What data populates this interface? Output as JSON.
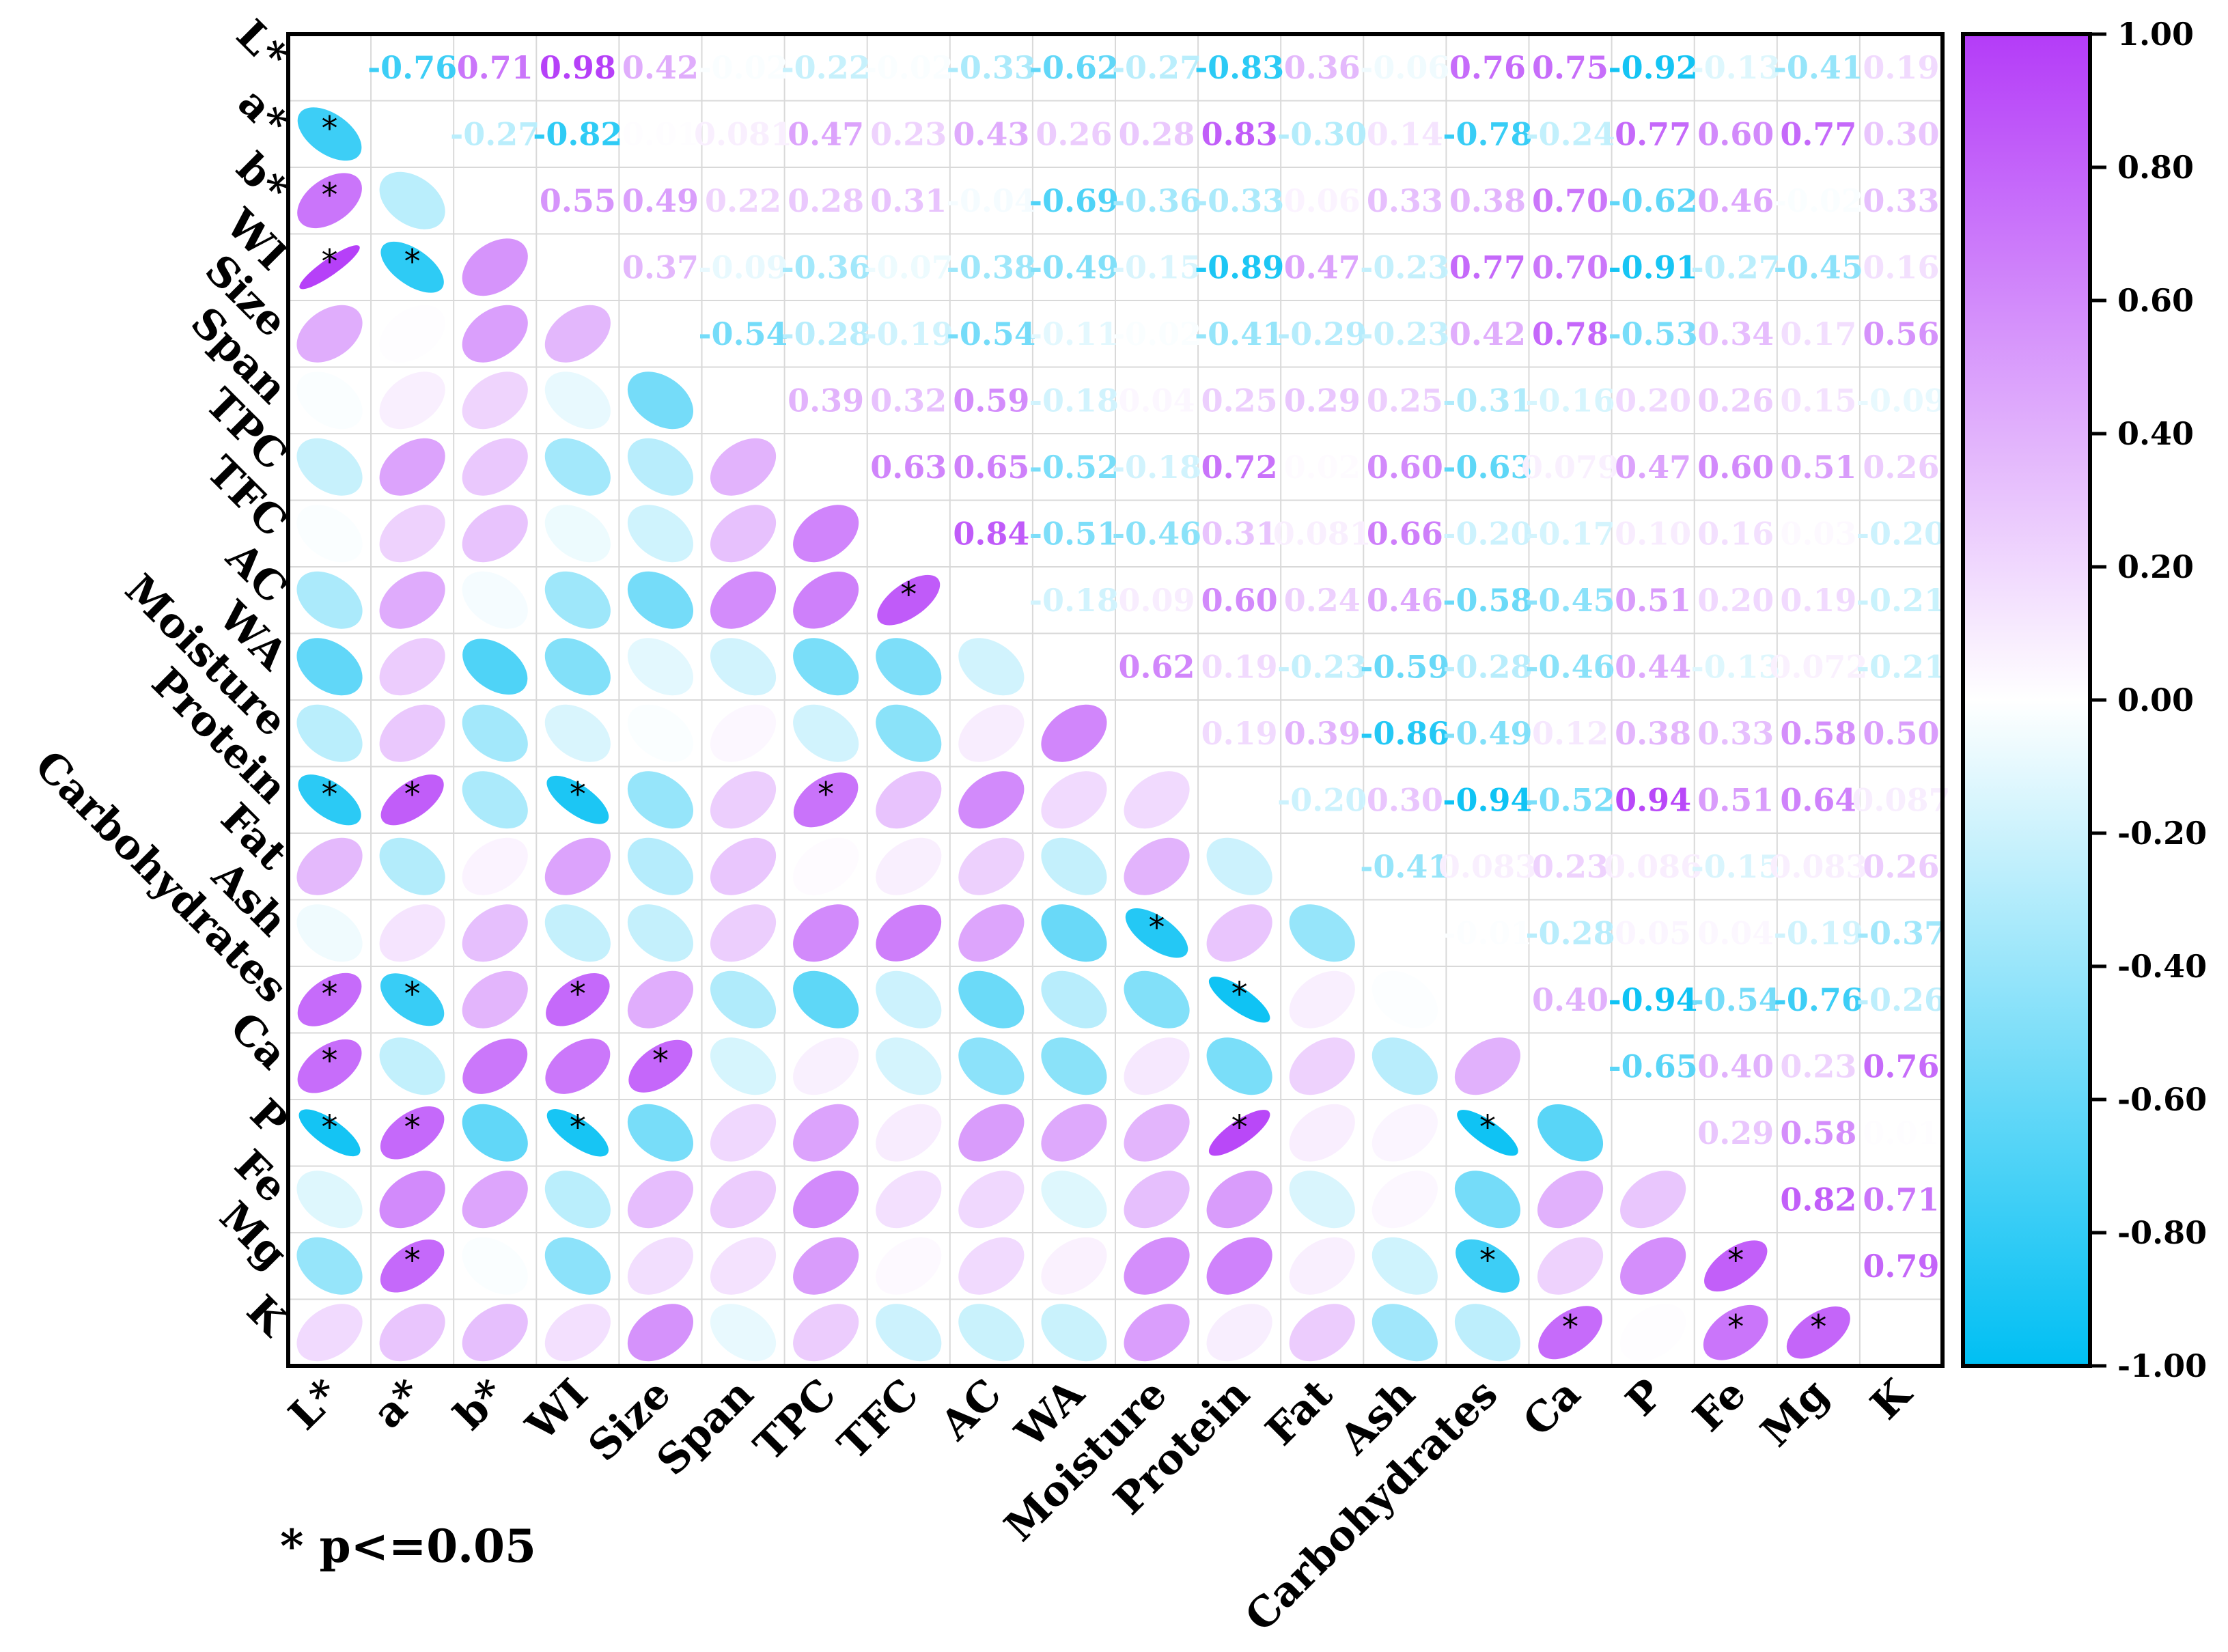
{
  "chart_data": {
    "type": "heatmap",
    "subtype": "correlation-matrix",
    "variables": [
      "L*",
      "a*",
      "b*",
      "WI",
      "Size",
      "Span",
      "TPC",
      "TFC",
      "AC",
      "WA",
      "Moisture",
      "Protein",
      "Fat",
      "Ash",
      "Carbohydrates",
      "Ca",
      "P",
      "Fe",
      "Mg",
      "K"
    ],
    "upper_triangle_values": {
      "L*": [
        -0.76,
        0.71,
        0.98,
        0.42,
        -0.02,
        -0.22,
        -0.02,
        -0.33,
        -0.62,
        -0.27,
        -0.83,
        0.36,
        -0.06,
        0.76,
        0.75,
        -0.92,
        -0.13,
        -0.41,
        0.19
      ],
      "a*": [
        -0.27,
        -0.82,
        0.01,
        0.081,
        0.47,
        0.23,
        0.43,
        0.26,
        0.28,
        0.83,
        -0.3,
        0.14,
        -0.78,
        -0.24,
        0.77,
        0.6,
        0.77,
        0.3
      ],
      "b*": [
        0.55,
        0.49,
        0.22,
        0.28,
        0.31,
        -0.04,
        -0.69,
        -0.36,
        -0.33,
        0.06,
        0.33,
        0.38,
        0.7,
        -0.62,
        0.46,
        -0.02,
        0.33
      ],
      "WI": [
        0.37,
        -0.09,
        -0.36,
        -0.07,
        -0.38,
        -0.49,
        -0.15,
        -0.89,
        0.47,
        -0.23,
        0.77,
        0.7,
        -0.91,
        -0.27,
        -0.45,
        0.16
      ],
      "Size": [
        -0.54,
        -0.28,
        -0.19,
        -0.54,
        -0.11,
        -0.02,
        -0.41,
        -0.29,
        -0.23,
        0.42,
        0.78,
        -0.53,
        0.34,
        0.17,
        0.56
      ],
      "Span": [
        0.39,
        0.32,
        0.59,
        -0.18,
        0.04,
        0.25,
        0.29,
        0.25,
        -0.31,
        -0.16,
        0.2,
        0.26,
        0.15,
        -0.09
      ],
      "TPC": [
        0.63,
        0.65,
        -0.52,
        -0.18,
        0.72,
        0.02,
        0.6,
        -0.63,
        0.079,
        0.47,
        0.6,
        0.51,
        0.26
      ],
      "TFC": [
        0.84,
        -0.51,
        -0.46,
        0.31,
        0.081,
        0.66,
        -0.2,
        -0.17,
        0.1,
        0.16,
        0.03,
        -0.2
      ],
      "AC": [
        -0.18,
        0.09,
        0.6,
        0.24,
        0.46,
        -0.58,
        -0.45,
        0.51,
        0.2,
        0.19,
        -0.21
      ],
      "WA": [
        0.62,
        0.19,
        -0.23,
        -0.59,
        -0.28,
        -0.46,
        0.44,
        -0.13,
        0.072,
        -0.21
      ],
      "Moisture": [
        0.19,
        0.39,
        -0.86,
        -0.49,
        0.12,
        0.38,
        0.33,
        0.58,
        0.5
      ],
      "Protein": [
        -0.2,
        0.3,
        -0.94,
        -0.52,
        0.94,
        0.51,
        0.64,
        0.087
      ],
      "Fat": [
        -0.41,
        0.083,
        0.23,
        0.086,
        -0.15,
        0.083,
        0.26
      ],
      "Ash": [
        -0.01,
        -0.28,
        0.05,
        0.04,
        -0.19,
        -0.37
      ],
      "Carbohydrates": [
        0.4,
        -0.94,
        -0.54,
        -0.76,
        -0.26
      ],
      "Ca": [
        -0.65,
        0.4,
        0.23,
        0.76
      ],
      "P": [
        0.29,
        0.58,
        0.01
      ],
      "Fe": [
        0.82,
        0.71
      ],
      "Mg": [
        0.79
      ],
      "K": []
    },
    "upper_label_strings": {
      "L*": [
        "-0.76",
        "0.71",
        "0.98",
        "0.42",
        "-0.02",
        "-0.22",
        "-0.02",
        "-0.33",
        "-0.62",
        "-0.27",
        "-0.83",
        "0.36",
        "-0.06",
        "0.76",
        "0.75",
        "-0.92",
        "-0.13",
        "-0.41",
        "0.19"
      ],
      "a*": [
        "-0.27",
        "-0.82",
        "0.01",
        "0.081",
        "0.47",
        "0.23",
        "0.43",
        "0.26",
        "0.28",
        "0.83",
        "-0.30",
        "0.14",
        "-0.78",
        "-0.24",
        "0.77",
        "0.60",
        "0.77",
        "0.30"
      ],
      "b*": [
        "0.55",
        "0.49",
        "0.22",
        "0.28",
        "0.31",
        "-0.04",
        "-0.69",
        "-0.36",
        "-0.33",
        "0.06",
        "0.33",
        "0.38",
        "0.70",
        "-0.62",
        "0.46",
        "-0.02",
        "0.33"
      ],
      "WI": [
        "0.37",
        "-0.09",
        "-0.36",
        "-0.07",
        "-0.38",
        "-0.49",
        "-0.15",
        "-0.89",
        "0.47",
        "-0.23",
        "0.77",
        "0.70",
        "-0.91",
        "-0.27",
        "-0.45",
        "0.16"
      ],
      "Size": [
        "-0.54",
        "-0.28",
        "-0.19",
        "-0.54",
        "-0.11",
        "-0.02",
        "-0.41",
        "-0.29",
        "-0.23",
        "0.42",
        "0.78",
        "-0.53",
        "0.34",
        "0.17",
        "0.56"
      ],
      "Span": [
        "0.39",
        "0.32",
        "0.59",
        "-0.18",
        "0.04",
        "0.25",
        "0.29",
        "0.25",
        "-0.31",
        "-0.16",
        "0.20",
        "0.26",
        "0.15",
        "-0.09"
      ],
      "TPC": [
        "0.63",
        "0.65",
        "-0.52",
        "-0.18",
        "0.72",
        "0.02",
        "0.60",
        "-0.63",
        "0.079",
        "0.47",
        "0.60",
        "0.51",
        "0.26"
      ],
      "TFC": [
        "0.84",
        "-0.51",
        "-0.46",
        "0.31",
        "0.081",
        "0.66",
        "-0.20",
        "-0.17",
        "0.10",
        "0.16",
        "0.03",
        "-0.20"
      ],
      "AC": [
        "-0.18",
        "0.09",
        "0.60",
        "0.24",
        "0.46",
        "-0.58",
        "-0.45",
        "0.51",
        "0.20",
        "0.19",
        "-0.21"
      ],
      "WA": [
        "0.62",
        "0.19",
        "-0.23",
        "-0.59",
        "-0.28",
        "-0.46",
        "0.44",
        "-0.13",
        "0.072",
        "-0.21"
      ],
      "Moisture": [
        "0.19",
        "0.39",
        "-0.86",
        "-0.49",
        "0.12",
        "0.38",
        "0.33",
        "0.58",
        "0.50"
      ],
      "Protein": [
        "-0.20",
        "0.30",
        "-0.94",
        "-0.52",
        "0.94",
        "0.51",
        "0.64",
        "0.087"
      ],
      "Fat": [
        "-0.41",
        "0.083",
        "0.23",
        "0.086",
        "-0.15",
        "0.083",
        "0.26"
      ],
      "Ash": [
        "-0.01",
        "-0.28",
        "0.05",
        "0.04",
        "-0.19",
        "-0.37"
      ],
      "Carbohydrates": [
        "0.40",
        "-0.94",
        "-0.54",
        "-0.76",
        "-0.26"
      ],
      "Ca": [
        "-0.65",
        "0.40",
        "0.23",
        "0.76"
      ],
      "P": [
        "0.29",
        "0.58",
        "0.01"
      ],
      "Fe": [
        "0.82",
        "0.71"
      ],
      "Mg": [
        "0.79"
      ],
      "K": []
    },
    "significance_marker": "*",
    "significance_note": "* p<=0.05",
    "significant_pairs": [
      [
        "a*",
        "L*"
      ],
      [
        "b*",
        "L*"
      ],
      [
        "WI",
        "L*"
      ],
      [
        "WI",
        "a*"
      ],
      [
        "AC",
        "TFC"
      ],
      [
        "Protein",
        "L*"
      ],
      [
        "Protein",
        "a*"
      ],
      [
        "Protein",
        "WI"
      ],
      [
        "Protein",
        "TPC"
      ],
      [
        "Ash",
        "Moisture"
      ],
      [
        "Carbohydrates",
        "L*"
      ],
      [
        "Carbohydrates",
        "a*"
      ],
      [
        "Carbohydrates",
        "WI"
      ],
      [
        "Carbohydrates",
        "Protein"
      ],
      [
        "Ca",
        "L*"
      ],
      [
        "Ca",
        "Size"
      ],
      [
        "P",
        "L*"
      ],
      [
        "P",
        "a*"
      ],
      [
        "P",
        "WI"
      ],
      [
        "P",
        "Protein"
      ],
      [
        "P",
        "Carbohydrates"
      ],
      [
        "Mg",
        "a*"
      ],
      [
        "Mg",
        "Carbohydrates"
      ],
      [
        "Mg",
        "Fe"
      ],
      [
        "K",
        "Ca"
      ],
      [
        "K",
        "Fe"
      ],
      [
        "K",
        "Mg"
      ]
    ],
    "lower_triangle": "ellipses (same correlation values as upper triangle)",
    "colorbar": {
      "min": -1.0,
      "max": 1.0,
      "ticks": [
        "1.00",
        "0.80",
        "0.60",
        "0.40",
        "0.20",
        "0.00",
        "-0.20",
        "-0.40",
        "-0.60",
        "-0.80",
        "-1.00"
      ],
      "low_color": "#00BFF3",
      "mid_color": "#FFFFFF",
      "high_color": "#B43CF8"
    }
  }
}
